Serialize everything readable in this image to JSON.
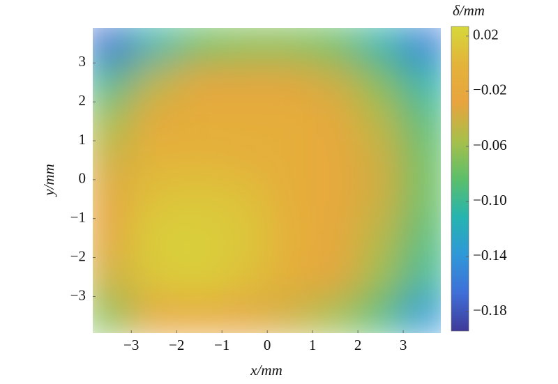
{
  "chart_data": {
    "type": "heatmap",
    "x_label": "x/mm",
    "y_label": "y/mm",
    "colorbar_label": "δ/mm",
    "x": [
      -3.5,
      -2.5,
      -1.5,
      -0.5,
      0.5,
      1.5,
      2.5,
      3.5
    ],
    "y": [
      3.5,
      2.5,
      1.5,
      0.5,
      -0.5,
      -1.5,
      -2.5,
      -3.5
    ],
    "z": [
      [
        -0.17,
        -0.11,
        -0.08,
        -0.07,
        -0.07,
        -0.08,
        -0.11,
        -0.16
      ],
      [
        -0.1,
        -0.05,
        -0.03,
        -0.03,
        -0.03,
        -0.04,
        -0.07,
        -0.11
      ],
      [
        -0.06,
        -0.02,
        -0.01,
        -0.01,
        -0.01,
        -0.02,
        -0.05,
        -0.09
      ],
      [
        -0.04,
        0.0,
        0.0,
        -0.005,
        -0.01,
        -0.02,
        -0.04,
        -0.08
      ],
      [
        -0.03,
        0.01,
        0.015,
        0.01,
        -0.01,
        -0.02,
        -0.04,
        -0.08
      ],
      [
        -0.03,
        0.02,
        0.02,
        0.015,
        -0.005,
        -0.02,
        -0.05,
        -0.09
      ],
      [
        -0.04,
        0.015,
        0.02,
        0.01,
        -0.01,
        -0.03,
        -0.06,
        -0.1
      ],
      [
        -0.07,
        -0.03,
        -0.02,
        -0.03,
        -0.04,
        -0.06,
        -0.09,
        -0.14
      ]
    ],
    "xlim": [
      -3.85,
      3.83
    ],
    "ylim": [
      -3.94,
      3.9
    ],
    "clim": [
      -0.194,
      0.027
    ],
    "colormap": [
      "#3e3a98",
      "#3f6fd8",
      "#2f98d8",
      "#25b4b0",
      "#5cbf6a",
      "#a8bf4a",
      "#e8a43e",
      "#e3b33a",
      "#d6d83a"
    ],
    "xticks": [
      {
        "value": -3,
        "label": "−3"
      },
      {
        "value": -2,
        "label": "−2"
      },
      {
        "value": -1,
        "label": "−1"
      },
      0,
      1,
      2,
      3
    ],
    "yticks": [
      {
        "value": -3,
        "label": "−3"
      },
      {
        "value": -2,
        "label": "−2"
      },
      {
        "value": -1,
        "label": "−1"
      },
      0,
      1,
      2,
      3
    ],
    "cticks": [
      0.02,
      {
        "value": -0.02,
        "label": "−0.02"
      },
      {
        "value": -0.06,
        "label": "−0.06"
      },
      {
        "value": -0.1,
        "label": "−0.10"
      },
      {
        "value": -0.14,
        "label": "−0.14"
      },
      {
        "value": -0.18,
        "label": "−0.18"
      }
    ]
  }
}
